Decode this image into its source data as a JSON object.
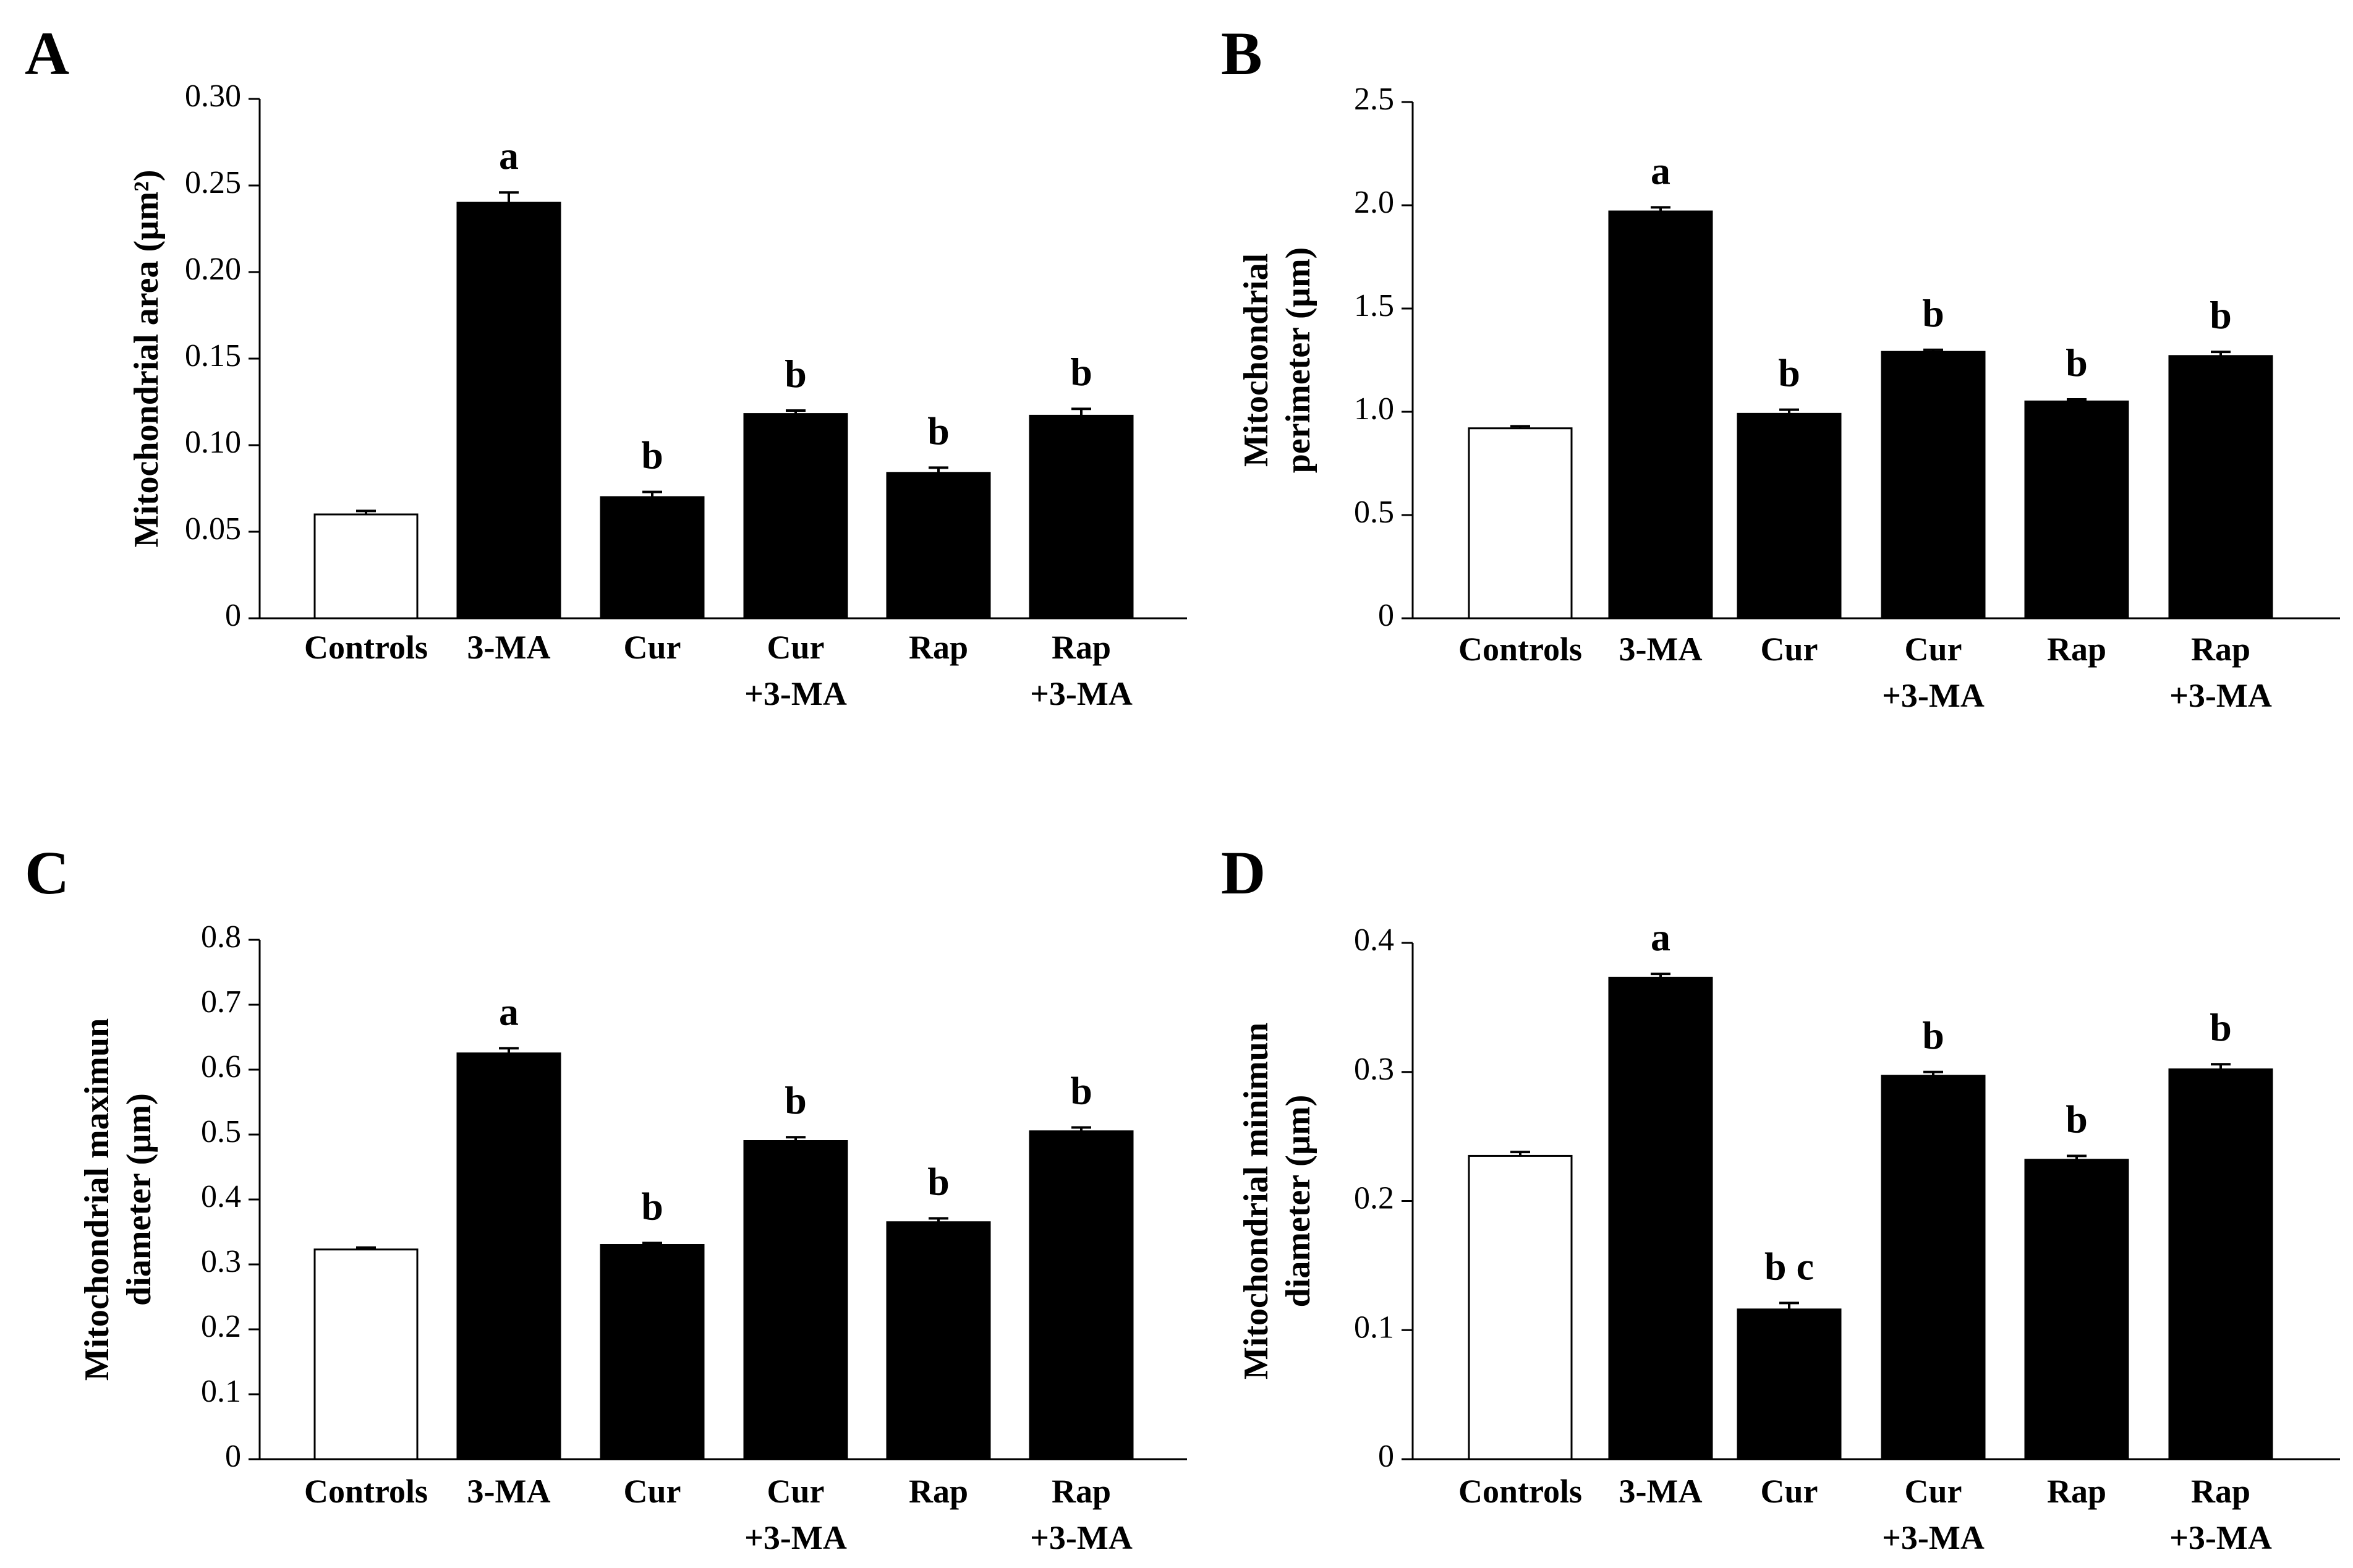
{
  "chart_data": [
    {
      "panel": "A",
      "type": "bar",
      "categories": [
        [
          "Controls"
        ],
        [
          "3-MA"
        ],
        [
          "Cur"
        ],
        [
          "Cur",
          "+3-MA"
        ],
        [
          "Rap"
        ],
        [
          "Rap",
          "+3-MA"
        ]
      ],
      "values": [
        0.06,
        0.24,
        0.07,
        0.118,
        0.084,
        0.117
      ],
      "errors": [
        0.002,
        0.006,
        0.003,
        0.002,
        0.003,
        0.004
      ],
      "fills": [
        "#ffffff",
        "#000000",
        "#000000",
        "#000000",
        "#000000",
        "#000000"
      ],
      "significance": [
        "",
        "a",
        "b",
        "b",
        "b",
        "b"
      ],
      "ylabel": [
        "Mitochondrial area (µm²)"
      ],
      "ylim": [
        0,
        0.3
      ],
      "yticks": [
        0,
        0.05,
        0.1,
        0.15,
        0.2,
        0.25,
        0.3
      ],
      "ytick_labels": [
        "0",
        "0.05",
        "0.10",
        "0.15",
        "0.20",
        "0.25",
        "0.30"
      ]
    },
    {
      "panel": "B",
      "type": "bar",
      "categories": [
        [
          "Controls"
        ],
        [
          "3-MA"
        ],
        [
          "Cur"
        ],
        [
          "Cur",
          "+3-MA"
        ],
        [
          "Rap"
        ],
        [
          "Rap",
          "+3-MA"
        ]
      ],
      "values": [
        0.92,
        1.97,
        0.99,
        1.29,
        1.05,
        1.27
      ],
      "errors": [
        0.01,
        0.02,
        0.02,
        0.01,
        0.01,
        0.02
      ],
      "fills": [
        "#ffffff",
        "#000000",
        "#000000",
        "#000000",
        "#000000",
        "#000000"
      ],
      "significance": [
        "",
        "a",
        "b",
        "b",
        "b",
        "b"
      ],
      "ylabel": [
        "Mitochondrial",
        "perimeter (µm)"
      ],
      "ylim": [
        0,
        2.5
      ],
      "yticks": [
        0,
        0.5,
        1.0,
        1.5,
        2.0,
        2.5
      ],
      "ytick_labels": [
        "0",
        "0.5",
        "1.0",
        "1.5",
        "2.0",
        "2.5"
      ]
    },
    {
      "panel": "C",
      "type": "bar",
      "categories": [
        [
          "Controls"
        ],
        [
          "3-MA"
        ],
        [
          "Cur"
        ],
        [
          "Cur",
          "+3-MA"
        ],
        [
          "Rap"
        ],
        [
          "Rap",
          "+3-MA"
        ]
      ],
      "values": [
        0.323,
        0.625,
        0.33,
        0.49,
        0.365,
        0.505
      ],
      "errors": [
        0.003,
        0.008,
        0.003,
        0.006,
        0.006,
        0.006
      ],
      "fills": [
        "#ffffff",
        "#000000",
        "#000000",
        "#000000",
        "#000000",
        "#000000"
      ],
      "significance": [
        "",
        "a",
        "b",
        "b",
        "b",
        "b"
      ],
      "ylabel": [
        "Mitochondrial maximun",
        "diameter (µm)"
      ],
      "ylim": [
        0,
        0.8
      ],
      "yticks": [
        0,
        0.1,
        0.2,
        0.3,
        0.4,
        0.5,
        0.6,
        0.7,
        0.8
      ],
      "ytick_labels": [
        "0",
        "0.1",
        "0.2",
        "0.3",
        "0.4",
        "0.5",
        "0.6",
        "0.7",
        "0.8"
      ]
    },
    {
      "panel": "D",
      "type": "bar",
      "categories": [
        [
          "Controls"
        ],
        [
          "3-MA"
        ],
        [
          "Cur"
        ],
        [
          "Cur",
          "+3-MA"
        ],
        [
          "Rap"
        ],
        [
          "Rap",
          "+3-MA"
        ]
      ],
      "values": [
        0.235,
        0.373,
        0.116,
        0.297,
        0.232,
        0.302
      ],
      "errors": [
        0.003,
        0.003,
        0.005,
        0.003,
        0.003,
        0.004
      ],
      "fills": [
        "#ffffff",
        "#000000",
        "#000000",
        "#000000",
        "#000000",
        "#000000"
      ],
      "significance": [
        "",
        "a",
        "b c",
        "b",
        "b",
        "b"
      ],
      "ylabel": [
        "Mitochondrial minimun",
        "diameter (µm)"
      ],
      "ylim": [
        0,
        0.4
      ],
      "yticks": [
        0,
        0.1,
        0.2,
        0.3,
        0.4
      ],
      "ytick_labels": [
        "0",
        "0.1",
        "0.2",
        "0.3",
        "0.4"
      ]
    }
  ]
}
